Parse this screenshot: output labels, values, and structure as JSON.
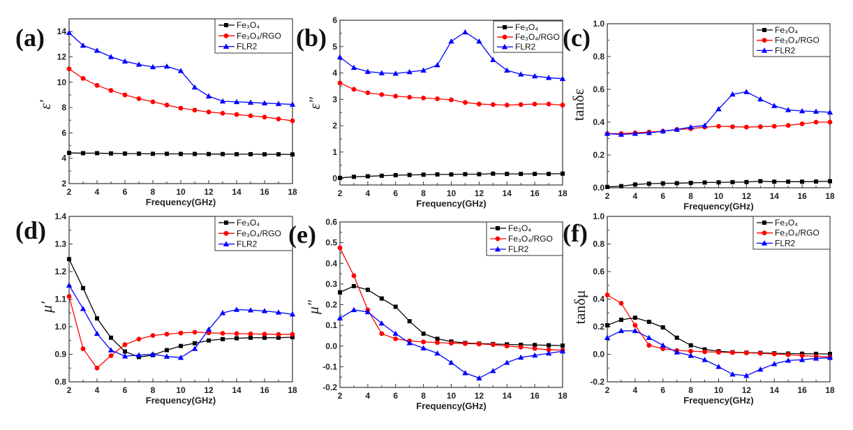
{
  "chart_data": [
    {
      "type": "line",
      "panel_label": "(a)",
      "xlabel": "Frequency(GHz)",
      "ylabel": "ε′",
      "xlim": [
        2,
        18
      ],
      "ylim": [
        2,
        15
      ],
      "xticks": [
        2,
        4,
        6,
        8,
        10,
        12,
        14,
        16,
        18
      ],
      "yticks": [
        2,
        4,
        6,
        8,
        10,
        12,
        14
      ],
      "legend": "top-right",
      "x": [
        2,
        3,
        4,
        5,
        6,
        7,
        8,
        9,
        10,
        11,
        12,
        13,
        14,
        15,
        16,
        17,
        18
      ],
      "series": [
        {
          "name": "Fe₃O₄",
          "color": "#000000",
          "marker": "square",
          "values": [
            4.42,
            4.4,
            4.4,
            4.38,
            4.37,
            4.36,
            4.35,
            4.35,
            4.34,
            4.34,
            4.33,
            4.33,
            4.32,
            4.32,
            4.31,
            4.31,
            4.3
          ]
        },
        {
          "name": "Fe₃O₄/RGO",
          "color": "#ff0000",
          "marker": "circle",
          "values": [
            11.05,
            10.3,
            9.75,
            9.35,
            9.0,
            8.7,
            8.45,
            8.2,
            7.95,
            7.8,
            7.65,
            7.55,
            7.45,
            7.35,
            7.25,
            7.1,
            6.95
          ]
        },
        {
          "name": "FLR2",
          "color": "#0000ff",
          "marker": "triangle",
          "values": [
            13.9,
            12.9,
            12.5,
            12.0,
            11.65,
            11.4,
            11.2,
            11.25,
            10.9,
            9.6,
            8.9,
            8.5,
            8.45,
            8.4,
            8.35,
            8.3,
            8.25
          ]
        }
      ]
    },
    {
      "type": "line",
      "panel_label": "(b)",
      "xlabel": "Frequency(GHz)",
      "ylabel": "ε″",
      "xlim": [
        2,
        18
      ],
      "ylim": [
        -0.25,
        6
      ],
      "xticks": [
        2,
        4,
        6,
        8,
        10,
        12,
        14,
        16,
        18
      ],
      "yticks": [
        0,
        1,
        2,
        3,
        4,
        5,
        6
      ],
      "legend": "top-right",
      "x": [
        2,
        3,
        4,
        5,
        6,
        7,
        8,
        9,
        10,
        11,
        12,
        13,
        14,
        15,
        16,
        17,
        18
      ],
      "series": [
        {
          "name": "Fe₃O₄",
          "color": "#000000",
          "marker": "square",
          "values": [
            0.02,
            0.06,
            0.08,
            0.1,
            0.12,
            0.13,
            0.14,
            0.15,
            0.15,
            0.16,
            0.16,
            0.18,
            0.17,
            0.17,
            0.17,
            0.17,
            0.18
          ]
        },
        {
          "name": "Fe₃O₄/RGO",
          "color": "#ff0000",
          "marker": "circle",
          "values": [
            3.62,
            3.38,
            3.25,
            3.18,
            3.12,
            3.08,
            3.05,
            3.02,
            2.98,
            2.88,
            2.82,
            2.8,
            2.78,
            2.8,
            2.82,
            2.82,
            2.78
          ]
        },
        {
          "name": "FLR2",
          "color": "#0000ff",
          "marker": "triangle",
          "values": [
            4.6,
            4.2,
            4.05,
            4.0,
            3.98,
            4.04,
            4.1,
            4.3,
            5.2,
            5.55,
            5.2,
            4.5,
            4.1,
            3.95,
            3.88,
            3.82,
            3.78
          ]
        }
      ]
    },
    {
      "type": "line",
      "panel_label": "(c)",
      "xlabel": "Frequency(GHz)",
      "ylabel": "tanδε",
      "xlim": [
        2,
        18
      ],
      "ylim": [
        0,
        1
      ],
      "xticks": [
        2,
        4,
        6,
        8,
        10,
        12,
        14,
        16,
        18
      ],
      "yticks": [
        0.0,
        0.2,
        0.4,
        0.6,
        0.8,
        1.0
      ],
      "legend": "top-right",
      "x": [
        2,
        3,
        4,
        5,
        6,
        7,
        8,
        9,
        10,
        11,
        12,
        13,
        14,
        15,
        16,
        17,
        18
      ],
      "series": [
        {
          "name": "Fe₃O₄",
          "color": "#000000",
          "marker": "square",
          "values": [
            0.005,
            0.01,
            0.02,
            0.025,
            0.027,
            0.028,
            0.03,
            0.032,
            0.033,
            0.034,
            0.035,
            0.04,
            0.037,
            0.037,
            0.037,
            0.038,
            0.04
          ]
        },
        {
          "name": "Fe₃O₄/RGO",
          "color": "#ff0000",
          "marker": "circle",
          "values": [
            0.33,
            0.33,
            0.335,
            0.34,
            0.345,
            0.355,
            0.36,
            0.37,
            0.375,
            0.372,
            0.37,
            0.372,
            0.375,
            0.38,
            0.39,
            0.4,
            0.4
          ]
        },
        {
          "name": "FLR2",
          "color": "#0000ff",
          "marker": "triangle",
          "values": [
            0.33,
            0.325,
            0.33,
            0.335,
            0.345,
            0.355,
            0.37,
            0.38,
            0.48,
            0.57,
            0.585,
            0.54,
            0.5,
            0.475,
            0.468,
            0.465,
            0.46
          ]
        }
      ]
    },
    {
      "type": "line",
      "panel_label": "(d)",
      "xlabel": "Frequency(GHz)",
      "ylabel": "μ′",
      "xlim": [
        2,
        18
      ],
      "ylim": [
        0.8,
        1.4
      ],
      "xticks": [
        2,
        4,
        6,
        8,
        10,
        12,
        14,
        16,
        18
      ],
      "yticks": [
        0.8,
        0.9,
        1.0,
        1.1,
        1.2,
        1.3,
        1.4
      ],
      "legend": "top-right",
      "x": [
        2,
        3,
        4,
        5,
        6,
        7,
        8,
        9,
        10,
        11,
        12,
        13,
        14,
        15,
        16,
        17,
        18
      ],
      "series": [
        {
          "name": "Fe₃O₄",
          "color": "#000000",
          "marker": "square",
          "values": [
            1.245,
            1.14,
            1.03,
            0.96,
            0.91,
            0.89,
            0.897,
            0.915,
            0.93,
            0.94,
            0.95,
            0.955,
            0.958,
            0.96,
            0.96,
            0.96,
            0.962
          ]
        },
        {
          "name": "Fe₃O₄/RGO",
          "color": "#ff0000",
          "marker": "circle",
          "values": [
            1.11,
            0.92,
            0.85,
            0.895,
            0.935,
            0.955,
            0.968,
            0.973,
            0.977,
            0.98,
            0.978,
            0.976,
            0.975,
            0.974,
            0.973,
            0.972,
            0.972
          ]
        },
        {
          "name": "FLR2",
          "color": "#0000ff",
          "marker": "triangle",
          "values": [
            1.15,
            1.065,
            0.975,
            0.915,
            0.893,
            0.897,
            0.9,
            0.892,
            0.888,
            0.92,
            0.99,
            1.05,
            1.062,
            1.06,
            1.057,
            1.052,
            1.045
          ]
        }
      ]
    },
    {
      "type": "line",
      "panel_label": "(e)",
      "xlabel": "Frequency(GHz)",
      "ylabel": "μ″",
      "xlim": [
        2,
        18
      ],
      "ylim": [
        -0.2,
        0.6
      ],
      "xticks": [
        2,
        4,
        6,
        8,
        10,
        12,
        14,
        16,
        18
      ],
      "yticks": [
        -0.2,
        -0.1,
        0.0,
        0.1,
        0.2,
        0.3,
        0.4,
        0.5,
        0.6
      ],
      "legend": "top-right",
      "x": [
        2,
        3,
        4,
        5,
        6,
        7,
        8,
        9,
        10,
        11,
        12,
        13,
        14,
        15,
        16,
        17,
        18
      ],
      "series": [
        {
          "name": "Fe₃O₄",
          "color": "#000000",
          "marker": "square",
          "values": [
            0.26,
            0.29,
            0.272,
            0.23,
            0.19,
            0.12,
            0.06,
            0.035,
            0.022,
            0.015,
            0.012,
            0.01,
            0.008,
            0.006,
            0.005,
            0.004,
            0.002
          ]
        },
        {
          "name": "Fe₃O₄/RGO",
          "color": "#ff0000",
          "marker": "circle",
          "values": [
            0.475,
            0.34,
            0.175,
            0.06,
            0.035,
            0.025,
            0.02,
            0.017,
            0.014,
            0.012,
            0.01,
            0.007,
            0.0,
            -0.005,
            -0.012,
            -0.018,
            -0.02
          ]
        },
        {
          "name": "FLR2",
          "color": "#0000ff",
          "marker": "triangle",
          "values": [
            0.135,
            0.175,
            0.165,
            0.11,
            0.06,
            0.015,
            -0.01,
            -0.035,
            -0.08,
            -0.13,
            -0.155,
            -0.12,
            -0.08,
            -0.055,
            -0.045,
            -0.035,
            -0.025
          ]
        }
      ]
    },
    {
      "type": "line",
      "panel_label": "(f)",
      "xlabel": "Frequency(GHz)",
      "ylabel": "tanδμ",
      "xlim": [
        2,
        18
      ],
      "ylim": [
        -0.2,
        1.0
      ],
      "xticks": [
        2,
        4,
        6,
        8,
        10,
        12,
        14,
        16,
        18
      ],
      "yticks": [
        -0.2,
        0.0,
        0.2,
        0.4,
        0.6,
        0.8,
        1.0
      ],
      "legend": "top-right",
      "x": [
        2,
        3,
        4,
        5,
        6,
        7,
        8,
        9,
        10,
        11,
        12,
        13,
        14,
        15,
        16,
        17,
        18
      ],
      "series": [
        {
          "name": "Fe₃O₄",
          "color": "#000000",
          "marker": "square",
          "values": [
            0.21,
            0.25,
            0.265,
            0.235,
            0.195,
            0.12,
            0.065,
            0.035,
            0.022,
            0.015,
            0.012,
            0.01,
            0.007,
            0.005,
            0.004,
            0.003,
            0.002
          ]
        },
        {
          "name": "Fe₃O₄/RGO",
          "color": "#ff0000",
          "marker": "circle",
          "values": [
            0.43,
            0.37,
            0.21,
            0.065,
            0.04,
            0.028,
            0.022,
            0.018,
            0.015,
            0.012,
            0.01,
            0.007,
            0.002,
            -0.003,
            -0.01,
            -0.015,
            -0.02
          ]
        },
        {
          "name": "FLR2",
          "color": "#0000ff",
          "marker": "triangle",
          "values": [
            0.12,
            0.17,
            0.17,
            0.12,
            0.065,
            0.015,
            -0.01,
            -0.04,
            -0.09,
            -0.145,
            -0.155,
            -0.11,
            -0.07,
            -0.045,
            -0.04,
            -0.03,
            -0.025
          ]
        }
      ]
    }
  ]
}
